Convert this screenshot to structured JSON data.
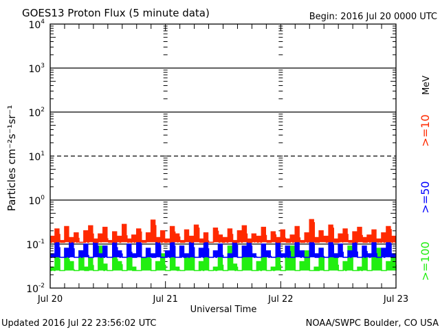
{
  "chart_data": {
    "type": "line",
    "title": "GOES13 Proton Flux (5 minute data)",
    "subtitle": "Begin: 2016 Jul 20 0000 UTC",
    "xlabel": "Universal Time",
    "ylabel": "Particles cm⁻²s⁻¹sr⁻¹",
    "yscale": "log",
    "ylim": [
      0.01,
      10000
    ],
    "xlim_hours": [
      0,
      72
    ],
    "x_tick_labels": [
      "Jul 20",
      "Jul 21",
      "Jul 22",
      "Jul 23"
    ],
    "y_tick_labels": [
      {
        "base": "10",
        "exp": "-2",
        "value": 0.01
      },
      {
        "base": "10",
        "exp": "-1",
        "value": 0.1
      },
      {
        "base": "10",
        "exp": "0",
        "value": 1
      },
      {
        "base": "10",
        "exp": "1",
        "value": 10
      },
      {
        "base": "10",
        "exp": "2",
        "value": 100
      },
      {
        "base": "10",
        "exp": "3",
        "value": 1000
      },
      {
        "base": "10",
        "exp": "4",
        "value": 10000
      }
    ],
    "unit_label": "MeV",
    "threshold_line": 10,
    "series": [
      {
        "name": ">=10",
        "color": "#ff2a00",
        "values": [
          0.15,
          0.22,
          0.12,
          0.25,
          0.14,
          0.18,
          0.11,
          0.2,
          0.26,
          0.13,
          0.17,
          0.24,
          0.12,
          0.19,
          0.15,
          0.28,
          0.13,
          0.16,
          0.22,
          0.12,
          0.18,
          0.35,
          0.14,
          0.2,
          0.13,
          0.25,
          0.17,
          0.12,
          0.21,
          0.15,
          0.27,
          0.13,
          0.18,
          0.11,
          0.23,
          0.16,
          0.14,
          0.22,
          0.12,
          0.2,
          0.26,
          0.13,
          0.17,
          0.15,
          0.24,
          0.12,
          0.19,
          0.14,
          0.21,
          0.13,
          0.16,
          0.25,
          0.12,
          0.18,
          0.36,
          0.14,
          0.2,
          0.15,
          0.27,
          0.13,
          0.17,
          0.22,
          0.12,
          0.19,
          0.24,
          0.14,
          0.16,
          0.21,
          0.13,
          0.18,
          0.25,
          0.15
        ]
      },
      {
        "name": ">=50",
        "color": "#0000ff",
        "values": [
          0.06,
          0.11,
          0.05,
          0.08,
          0.12,
          0.05,
          0.07,
          0.1,
          0.05,
          0.12,
          0.06,
          0.09,
          0.05,
          0.11,
          0.07,
          0.05,
          0.1,
          0.06,
          0.12,
          0.05,
          0.08,
          0.06,
          0.11,
          0.05,
          0.07,
          0.12,
          0.05,
          0.09,
          0.06,
          0.11,
          0.05,
          0.08,
          0.12,
          0.05,
          0.07,
          0.1,
          0.05,
          0.06,
          0.11,
          0.05,
          0.09,
          0.12,
          0.06,
          0.05,
          0.1,
          0.07,
          0.05,
          0.12,
          0.06,
          0.09,
          0.05,
          0.11,
          0.07,
          0.05,
          0.12,
          0.06,
          0.08,
          0.05,
          0.11,
          0.06,
          0.1,
          0.05,
          0.07,
          0.12,
          0.05,
          0.09,
          0.06,
          0.11,
          0.05,
          0.08,
          0.12,
          0.06
        ]
      },
      {
        "name": ">=100",
        "color": "#22ee11",
        "values": [
          0.03,
          0.06,
          0.025,
          0.08,
          0.04,
          0.025,
          0.07,
          0.03,
          0.05,
          0.025,
          0.09,
          0.035,
          0.025,
          0.06,
          0.04,
          0.025,
          0.08,
          0.03,
          0.025,
          0.05,
          0.07,
          0.025,
          0.04,
          0.06,
          0.025,
          0.08,
          0.03,
          0.025,
          0.05,
          0.07,
          0.025,
          0.04,
          0.08,
          0.025,
          0.03,
          0.06,
          0.025,
          0.09,
          0.035,
          0.025,
          0.05,
          0.07,
          0.025,
          0.04,
          0.08,
          0.025,
          0.03,
          0.06,
          0.025,
          0.05,
          0.09,
          0.025,
          0.04,
          0.07,
          0.025,
          0.03,
          0.08,
          0.025,
          0.05,
          0.06,
          0.025,
          0.04,
          0.09,
          0.025,
          0.03,
          0.07,
          0.025,
          0.05,
          0.08,
          0.025,
          0.04,
          0.06
        ]
      }
    ]
  },
  "footer": {
    "updated": "Updated 2016 Jul 22 23:56:02 UTC",
    "source": "NOAA/SWPC Boulder, CO USA"
  }
}
